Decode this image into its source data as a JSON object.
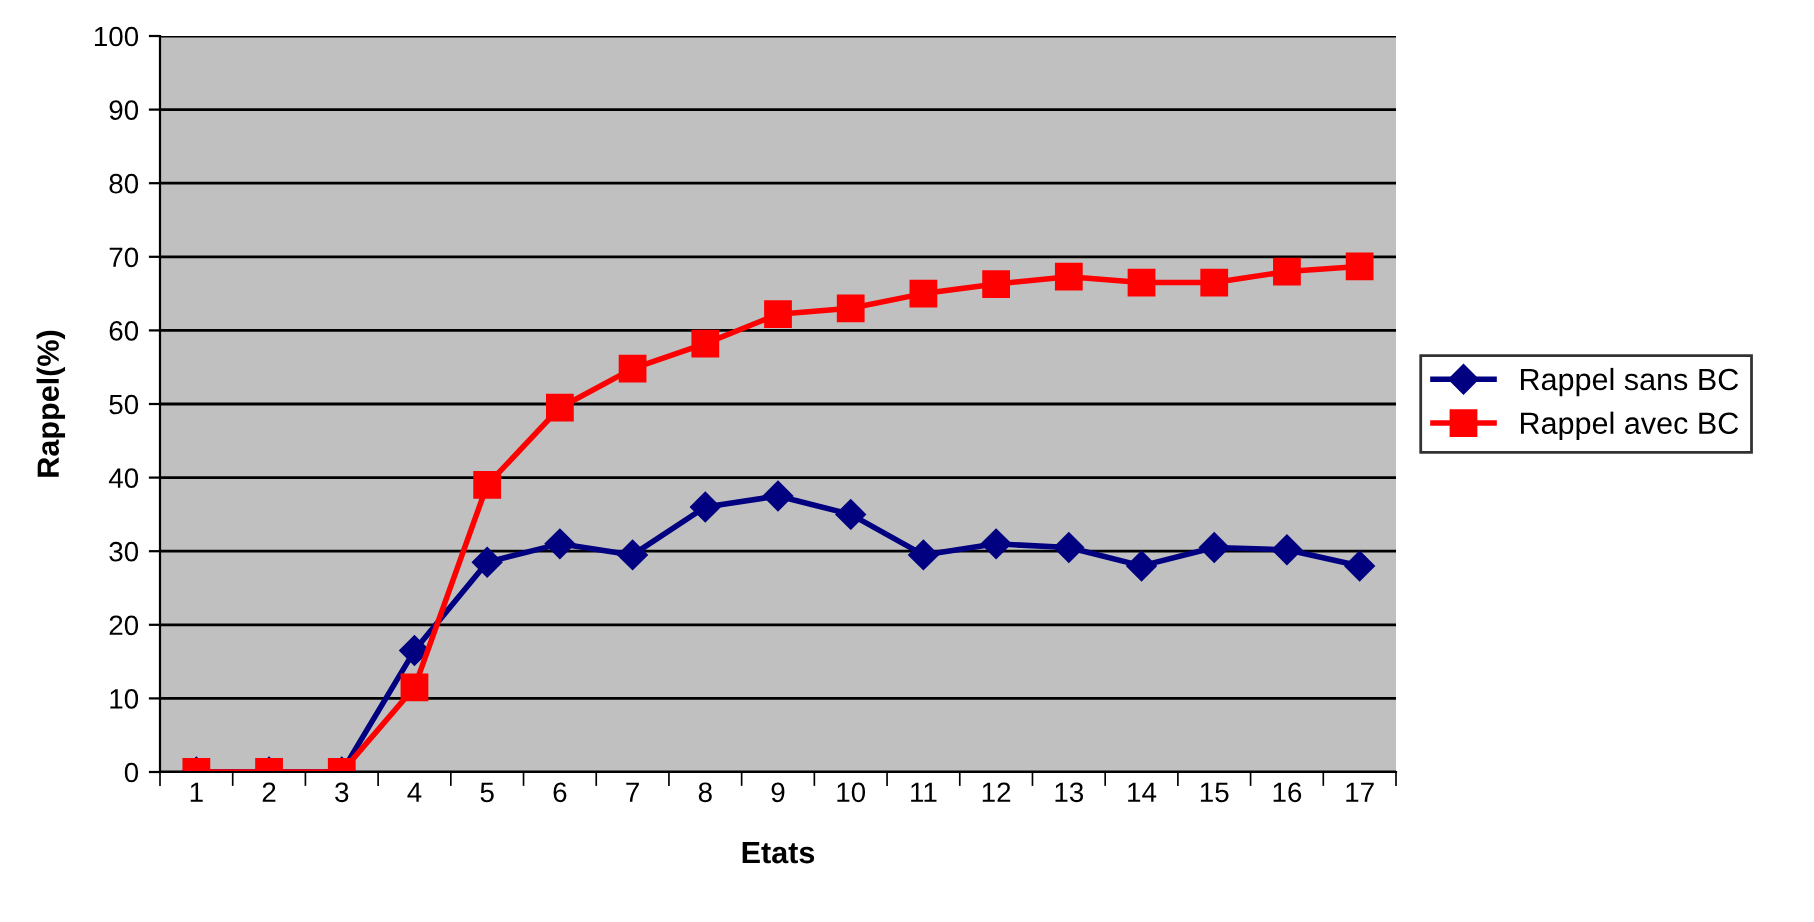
{
  "chart_data": {
    "type": "line",
    "xlabel": "Etats",
    "ylabel": "Rappel(%)",
    "categories": [
      "1",
      "2",
      "3",
      "4",
      "5",
      "6",
      "7",
      "8",
      "9",
      "10",
      "11",
      "12",
      "13",
      "14",
      "15",
      "16",
      "17"
    ],
    "ylim": [
      0,
      100
    ],
    "yticks": [
      0,
      10,
      20,
      30,
      40,
      50,
      60,
      70,
      80,
      90,
      100
    ],
    "grid": "y",
    "legend": "right",
    "series": [
      {
        "name": "Rappel sans BC",
        "color": "#000080",
        "marker": "diamond",
        "values": [
          0,
          0,
          0,
          16.5,
          28.5,
          31,
          29.5,
          36,
          37.5,
          35,
          29.5,
          31,
          30.5,
          28,
          30.5,
          30.2,
          28
        ]
      },
      {
        "name": "Rappel avec BC",
        "color": "#ff0000",
        "marker": "square",
        "values": [
          0,
          0,
          0,
          11.5,
          39,
          49.5,
          54.8,
          58.2,
          62.2,
          63,
          65,
          66.3,
          67.3,
          66.5,
          66.5,
          68,
          68.7
        ]
      }
    ]
  }
}
